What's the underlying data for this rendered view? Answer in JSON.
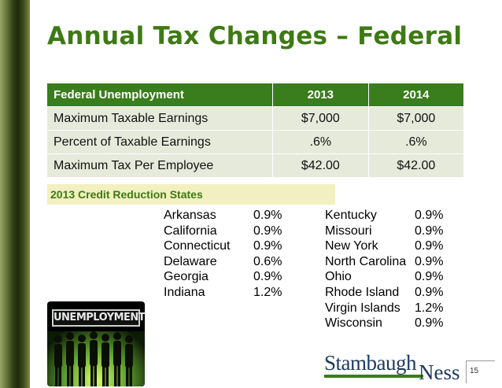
{
  "slide": {
    "title": "Annual Tax Changes – Federal",
    "page_number": "15"
  },
  "table": {
    "headers": [
      "Federal Unemployment",
      "2013",
      "2014"
    ],
    "rows": [
      [
        "Maximum Taxable Earnings",
        "$7,000",
        "$7,000"
      ],
      [
        "Percent of Taxable Earnings",
        ".6%",
        ".6%"
      ],
      [
        "Maximum Tax Per Employee",
        "$42.00",
        "$42.00"
      ]
    ]
  },
  "credit_reduction": {
    "label": "2013 Credit Reduction States",
    "left": [
      {
        "state": "Arkansas",
        "rate": "0.9%"
      },
      {
        "state": "California",
        "rate": "0.9%"
      },
      {
        "state": "Connecticut",
        "rate": "0.9%"
      },
      {
        "state": "Delaware",
        "rate": "0.6%"
      },
      {
        "state": "Georgia",
        "rate": "0.9%"
      },
      {
        "state": "Indiana",
        "rate": "1.2%"
      }
    ],
    "right": [
      {
        "state": "Kentucky",
        "rate": "0.9%"
      },
      {
        "state": "Missouri",
        "rate": "0.9%"
      },
      {
        "state": "New York",
        "rate": "0.9%"
      },
      {
        "state": "North Carolina",
        "rate": "0.9%"
      },
      {
        "state": "Ohio",
        "rate": "0.9%"
      },
      {
        "state": "Rhode Island",
        "rate": "0.9%"
      },
      {
        "state": "Virgin Islands",
        "rate": "1.2%"
      },
      {
        "state": "Wisconsin",
        "rate": "0.9%"
      }
    ]
  },
  "image": {
    "banner_text": "UNEMPLOYMENT"
  },
  "logo": {
    "main": "Stambaugh",
    "sub": "Ness"
  },
  "colors": {
    "title": "#3d7a14",
    "header_bg": "#3a7d1c",
    "row_bg": "#e6eadb",
    "credit_label_bg": "#f2f0c0",
    "logo_blue": "#1d3a63"
  }
}
